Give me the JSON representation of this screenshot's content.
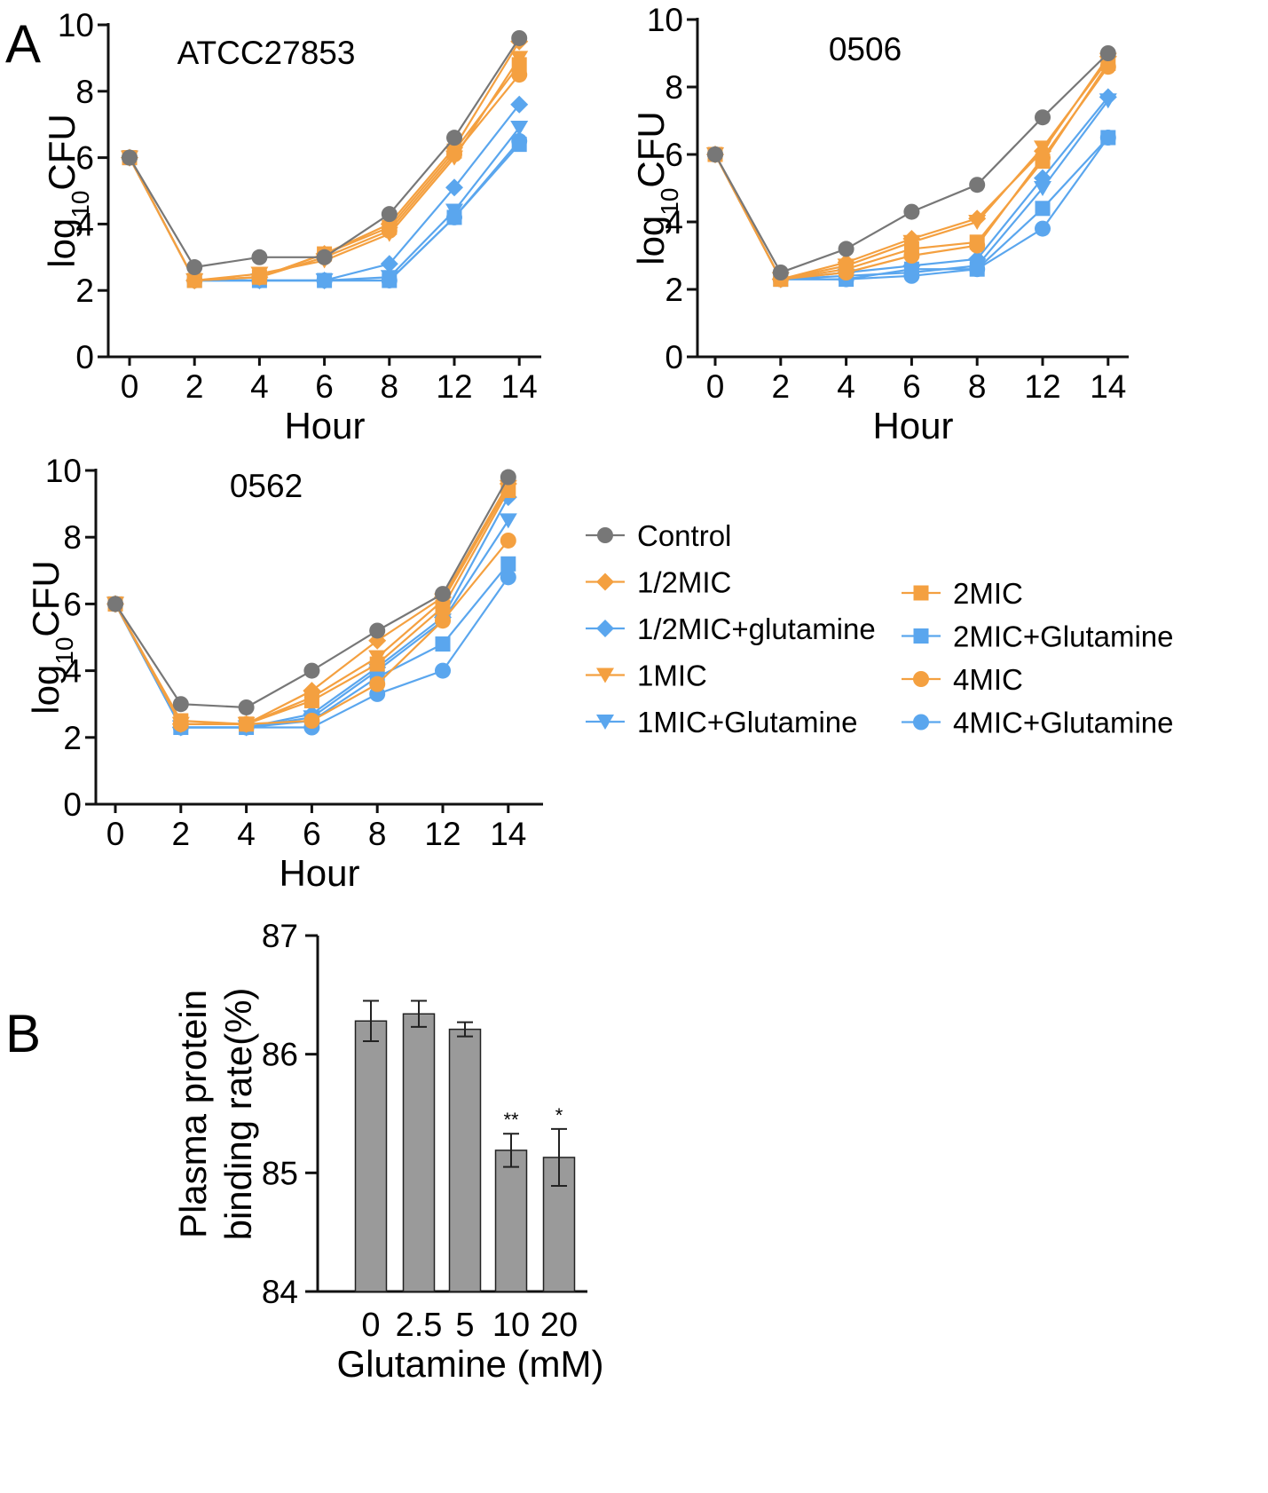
{
  "panel_labels": {
    "a": "A",
    "b": "B"
  },
  "colors": {
    "control": "#777777",
    "orange": "#F4A040",
    "blue": "#5AA6EE",
    "bar": "#9a9a9a",
    "axis": "#111111"
  },
  "legend": {
    "col1": [
      {
        "label": "Control",
        "color": "#777777",
        "marker": "circle"
      },
      {
        "label": "1/2MIC",
        "color": "#F4A040",
        "marker": "diamond"
      },
      {
        "label": "1/2MIC+glutamine",
        "color": "#5AA6EE",
        "marker": "diamond"
      },
      {
        "label": "1MIC",
        "color": "#F4A040",
        "marker": "triangle-down"
      },
      {
        "label": "1MIC+Glutamine",
        "color": "#5AA6EE",
        "marker": "triangle-down"
      }
    ],
    "col2": [
      {
        "label": "2MIC",
        "color": "#F4A040",
        "marker": "square"
      },
      {
        "label": "2MIC+Glutamine",
        "color": "#5AA6EE",
        "marker": "square"
      },
      {
        "label": "4MIC",
        "color": "#F4A040",
        "marker": "circle"
      },
      {
        "label": "4MIC+Glutamine",
        "color": "#5AA6EE",
        "marker": "circle"
      }
    ]
  },
  "chart_data": [
    {
      "type": "line",
      "title": "ATCC27853",
      "xlabel": "Hour",
      "ylabel_main": "log",
      "ylabel_sub": "10",
      "ylabel_tail": "CFU",
      "categories": [
        "0",
        "2",
        "4",
        "6",
        "8",
        "12",
        "14"
      ],
      "ylim": [
        0,
        10
      ],
      "yticks": [
        "0",
        "2",
        "4",
        "6",
        "8",
        "10"
      ],
      "series": [
        {
          "name": "1/2MIC+glutamine",
          "color": "#5AA6EE",
          "marker": "diamond",
          "values": [
            6,
            2.3,
            2.3,
            2.3,
            2.8,
            5.1,
            7.6
          ]
        },
        {
          "name": "1MIC+Glutamine",
          "color": "#5AA6EE",
          "marker": "triangle-down",
          "values": [
            6,
            2.3,
            2.3,
            2.3,
            2.4,
            4.4,
            6.9
          ]
        },
        {
          "name": "2MIC+Glutamine",
          "color": "#5AA6EE",
          "marker": "square",
          "values": [
            6,
            2.3,
            2.3,
            2.3,
            2.3,
            4.2,
            6.4
          ]
        },
        {
          "name": "4MIC+Glutamine",
          "color": "#5AA6EE",
          "marker": "circle",
          "values": [
            6,
            2.3,
            2.3,
            2.3,
            2.3,
            4.2,
            6.5
          ]
        },
        {
          "name": "1/2MIC",
          "color": "#F4A040",
          "marker": "diamond",
          "values": [
            6,
            2.3,
            2.4,
            3.1,
            4.0,
            6.3,
            9.5
          ]
        },
        {
          "name": "1MIC",
          "color": "#F4A040",
          "marker": "triangle-down",
          "values": [
            6,
            2.3,
            2.5,
            2.9,
            3.7,
            6.0,
            9.0
          ]
        },
        {
          "name": "2MIC",
          "color": "#F4A040",
          "marker": "square",
          "values": [
            6,
            2.3,
            2.4,
            3.1,
            3.9,
            6.2,
            8.8
          ]
        },
        {
          "name": "4MIC",
          "color": "#F4A040",
          "marker": "circle",
          "values": [
            6,
            2.3,
            2.4,
            3.0,
            3.8,
            6.1,
            8.5
          ]
        },
        {
          "name": "Control",
          "color": "#777777",
          "marker": "circle",
          "values": [
            6,
            2.7,
            3.0,
            3.0,
            4.3,
            6.6,
            9.6
          ]
        }
      ]
    },
    {
      "type": "line",
      "title": "0506",
      "xlabel": "Hour",
      "ylabel_main": "log",
      "ylabel_sub": "10",
      "ylabel_tail": "CFU",
      "categories": [
        "0",
        "2",
        "4",
        "6",
        "8",
        "12",
        "14"
      ],
      "ylim": [
        0,
        10
      ],
      "yticks": [
        "0",
        "2",
        "4",
        "6",
        "8",
        "10"
      ],
      "series": [
        {
          "name": "1/2MIC+glutamine",
          "color": "#5AA6EE",
          "marker": "diamond",
          "values": [
            6,
            2.3,
            2.5,
            2.7,
            2.9,
            5.3,
            7.7
          ]
        },
        {
          "name": "1MIC+Glutamine",
          "color": "#5AA6EE",
          "marker": "triangle-down",
          "values": [
            6,
            2.3,
            2.4,
            2.5,
            2.7,
            5.0,
            7.6
          ]
        },
        {
          "name": "2MIC+Glutamine",
          "color": "#5AA6EE",
          "marker": "square",
          "values": [
            6,
            2.3,
            2.3,
            2.6,
            2.6,
            4.4,
            6.5
          ]
        },
        {
          "name": "4MIC+Glutamine",
          "color": "#5AA6EE",
          "marker": "circle",
          "values": [
            6,
            2.3,
            2.3,
            2.4,
            2.6,
            3.8,
            6.5
          ]
        },
        {
          "name": "1/2MIC",
          "color": "#F4A040",
          "marker": "diamond",
          "values": [
            6,
            2.3,
            2.8,
            3.5,
            4.1,
            6.1,
            8.9
          ]
        },
        {
          "name": "1MIC",
          "color": "#F4A040",
          "marker": "triangle-down",
          "values": [
            6,
            2.3,
            2.7,
            3.4,
            4.0,
            6.2,
            8.8
          ]
        },
        {
          "name": "2MIC",
          "color": "#F4A040",
          "marker": "square",
          "values": [
            6,
            2.3,
            2.6,
            3.2,
            3.4,
            5.8,
            8.7
          ]
        },
        {
          "name": "4MIC",
          "color": "#F4A040",
          "marker": "circle",
          "values": [
            6,
            2.3,
            2.5,
            3.0,
            3.3,
            5.9,
            8.6
          ]
        },
        {
          "name": "Control",
          "color": "#777777",
          "marker": "circle",
          "values": [
            6,
            2.5,
            3.2,
            4.3,
            5.1,
            7.1,
            9.0
          ]
        }
      ]
    },
    {
      "type": "line",
      "title": "0562",
      "xlabel": "Hour",
      "ylabel_main": "log",
      "ylabel_sub": "10",
      "ylabel_tail": "CFU",
      "categories": [
        "0",
        "2",
        "4",
        "6",
        "8",
        "12",
        "14"
      ],
      "ylim": [
        0,
        10
      ],
      "yticks": [
        "0",
        "2",
        "4",
        "6",
        "8",
        "10"
      ],
      "series": [
        {
          "name": "1/2MIC+glutamine",
          "color": "#5AA6EE",
          "marker": "diamond",
          "values": [
            6,
            2.3,
            2.3,
            2.7,
            4.1,
            5.6,
            9.2
          ]
        },
        {
          "name": "1MIC+Glutamine",
          "color": "#5AA6EE",
          "marker": "triangle-down",
          "values": [
            6,
            2.3,
            2.3,
            2.6,
            4.0,
            5.5,
            8.5
          ]
        },
        {
          "name": "2MIC+Glutamine",
          "color": "#5AA6EE",
          "marker": "square",
          "values": [
            6,
            2.3,
            2.3,
            2.5,
            3.8,
            4.8,
            7.2
          ]
        },
        {
          "name": "4MIC+Glutamine",
          "color": "#5AA6EE",
          "marker": "circle",
          "values": [
            6,
            2.3,
            2.3,
            2.3,
            3.3,
            4.0,
            6.8
          ]
        },
        {
          "name": "1/2MIC",
          "color": "#F4A040",
          "marker": "diamond",
          "values": [
            6,
            2.4,
            2.4,
            3.4,
            4.9,
            6.2,
            9.6
          ]
        },
        {
          "name": "1MIC",
          "color": "#F4A040",
          "marker": "triangle-down",
          "values": [
            6,
            2.4,
            2.4,
            3.2,
            4.4,
            6.1,
            9.5
          ]
        },
        {
          "name": "2MIC",
          "color": "#F4A040",
          "marker": "square",
          "values": [
            6,
            2.5,
            2.4,
            3.1,
            4.2,
            5.9,
            9.4
          ]
        },
        {
          "name": "4MIC",
          "color": "#F4A040",
          "marker": "circle",
          "values": [
            6,
            2.4,
            2.4,
            2.5,
            3.6,
            5.5,
            7.9
          ]
        },
        {
          "name": "Control",
          "color": "#777777",
          "marker": "circle",
          "values": [
            6,
            3.0,
            2.9,
            4.0,
            5.2,
            6.3,
            9.8
          ]
        }
      ]
    },
    {
      "type": "bar",
      "xlabel": "Glutamine (mM)",
      "ylabel_line1": "Plasma protein",
      "ylabel_line2": "binding rate(%)",
      "categories": [
        "0",
        "2.5",
        "5",
        "10",
        "20"
      ],
      "values": [
        86.28,
        86.34,
        86.21,
        85.19,
        85.13
      ],
      "errors": [
        0.17,
        0.11,
        0.06,
        0.14,
        0.24
      ],
      "significance": [
        "",
        "",
        "",
        "**",
        "*"
      ],
      "ylim": [
        84,
        87
      ],
      "yticks": [
        "84",
        "85",
        "86",
        "87"
      ]
    }
  ]
}
